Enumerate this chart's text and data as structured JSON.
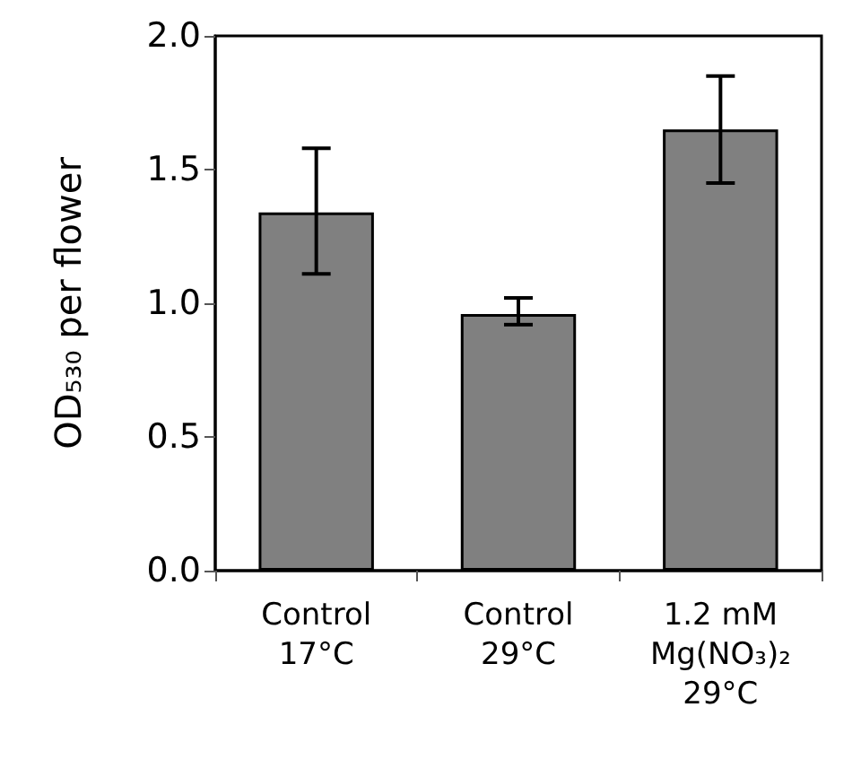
{
  "chart_data": {
    "type": "bar",
    "ylabel": "OD₅₃₀ per flower",
    "categories": [
      "Control\n17°C",
      "Control\n29°C",
      "1.2 mM\nMg(NO₃)₂\n29°C"
    ],
    "values": [
      1.34,
      0.96,
      1.65
    ],
    "color": "#808080",
    "errors": [
      [
        1.11,
        1.58
      ],
      [
        0.92,
        1.02
      ],
      [
        1.45,
        1.85
      ]
    ],
    "ylim": [
      0,
      2.0
    ],
    "yticks": [
      {
        "value": 0,
        "label": "0.0"
      },
      {
        "value": 0.5,
        "label": "0.5"
      },
      {
        "value": 1,
        "label": "1.0"
      },
      {
        "value": 1.5,
        "label": "1.5"
      },
      {
        "value": 2,
        "label": "2.0"
      }
    ],
    "grid": false
  }
}
